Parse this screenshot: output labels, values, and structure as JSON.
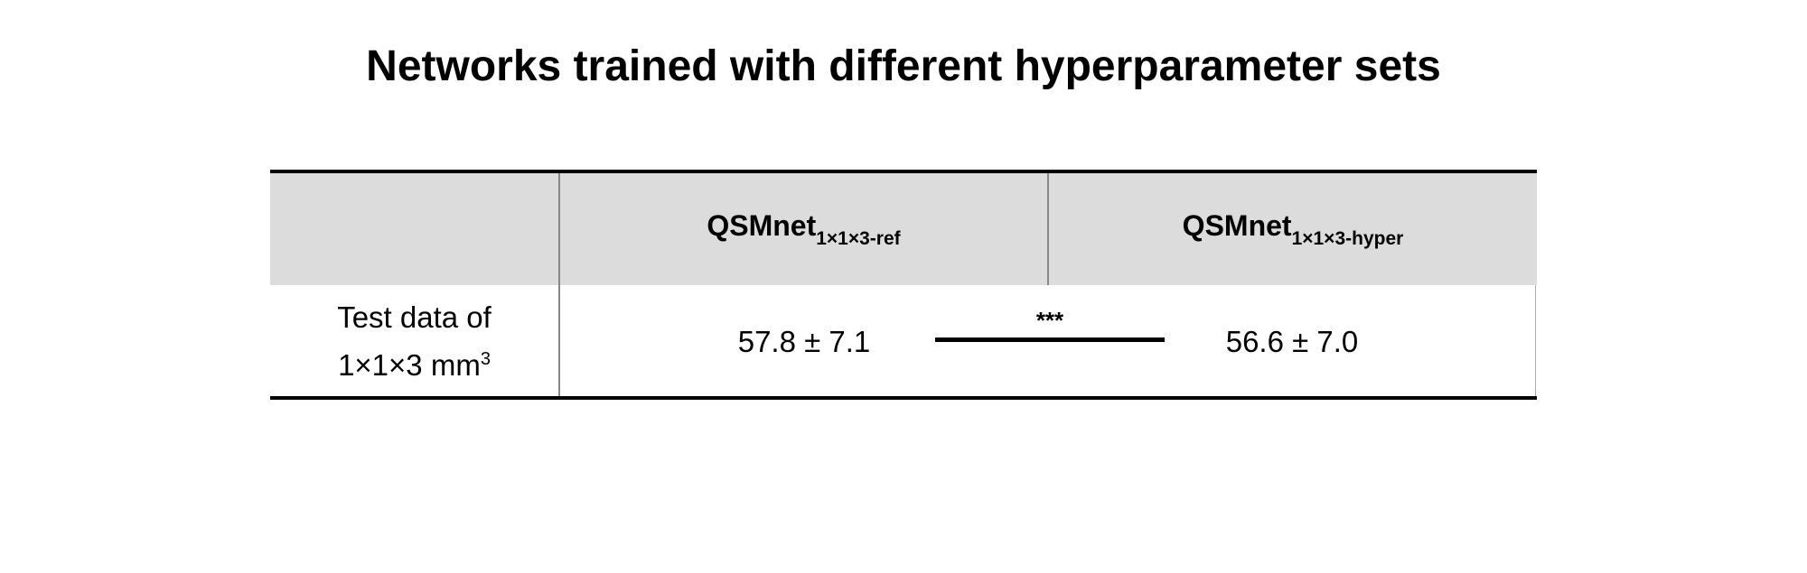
{
  "title": "Networks trained with different hyperparameter sets",
  "table": {
    "columns": [
      {
        "main": "QSMnet",
        "sub": "1×1×3-ref"
      },
      {
        "main": "QSMnet",
        "sub": "1×1×3-hyper"
      }
    ],
    "rows": [
      {
        "label_line1": "Test data of",
        "label_line2": "1×1×3 mm",
        "label_sup": "3",
        "values": [
          "57.8 ± 7.1",
          "56.6 ± 7.0"
        ],
        "significance": "***"
      }
    ]
  }
}
